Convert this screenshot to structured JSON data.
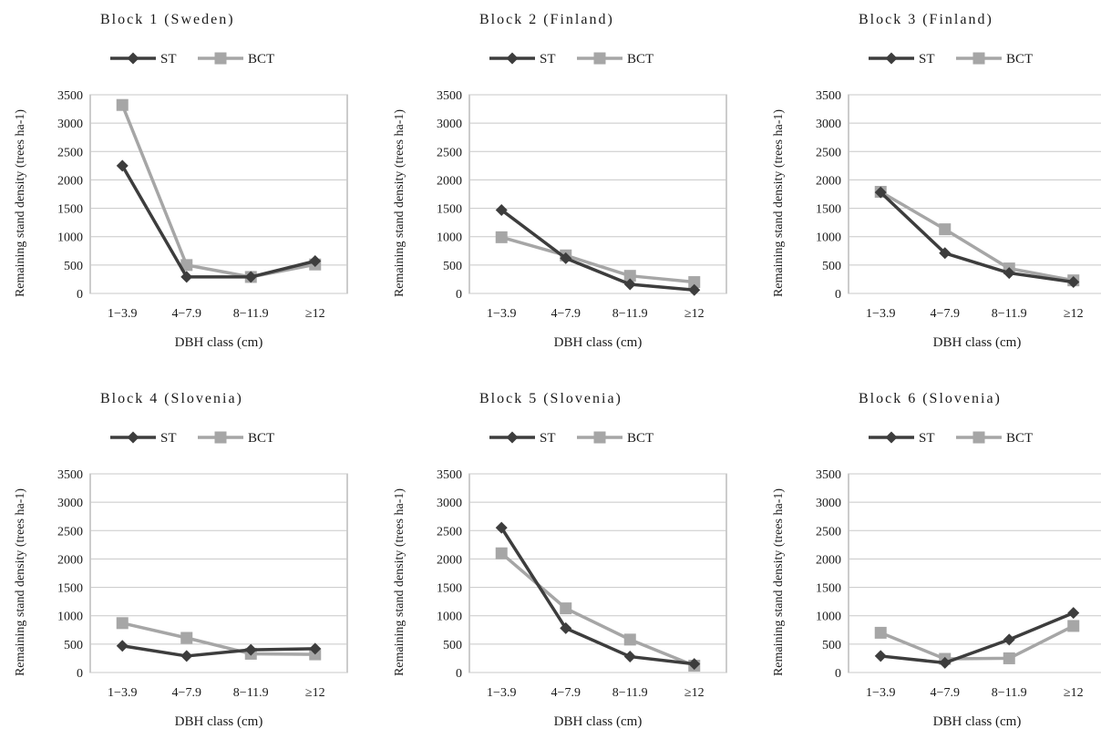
{
  "colors": {
    "ST": "#3d3d3d",
    "BCT": "#a6a6a6",
    "grid": "#c8c8c8",
    "axis": "#999999"
  },
  "chart_data": [
    {
      "type": "line",
      "title": "Block 1 (Sweden)",
      "xlabel": "DBH class (cm)",
      "ylabel": "Remaining stand density (trees ha-1)",
      "categories": [
        "1−3.9",
        "4−7.9",
        "8−11.9",
        "≥12"
      ],
      "ylim": [
        0,
        3500
      ],
      "yticks": [
        0,
        500,
        1000,
        1500,
        2000,
        2500,
        3000,
        3500
      ],
      "grid": true,
      "legend": "top",
      "series": [
        {
          "name": "ST",
          "marker": "diamond",
          "values": [
            2250,
            290,
            290,
            570
          ]
        },
        {
          "name": "BCT",
          "marker": "square",
          "values": [
            3320,
            500,
            290,
            510
          ]
        }
      ]
    },
    {
      "type": "line",
      "title": "Block 2 (Finland)",
      "xlabel": "DBH class (cm)",
      "ylabel": "Remaining stand density (trees ha-1)",
      "categories": [
        "1−3.9",
        "4−7.9",
        "8−11.9",
        "≥12"
      ],
      "ylim": [
        0,
        3500
      ],
      "yticks": [
        0,
        500,
        1000,
        1500,
        2000,
        2500,
        3000,
        3500
      ],
      "grid": true,
      "legend": "top",
      "series": [
        {
          "name": "ST",
          "marker": "diamond",
          "values": [
            1470,
            620,
            160,
            60
          ]
        },
        {
          "name": "BCT",
          "marker": "square",
          "values": [
            990,
            670,
            310,
            200
          ]
        }
      ]
    },
    {
      "type": "line",
      "title": "Block 3 (Finland)",
      "xlabel": "DBH class (cm)",
      "ylabel": "Remaining stand density (trees ha-1)",
      "categories": [
        "1−3.9",
        "4−7.9",
        "8−11.9",
        "≥12"
      ],
      "ylim": [
        0,
        3500
      ],
      "yticks": [
        0,
        500,
        1000,
        1500,
        2000,
        2500,
        3000,
        3500
      ],
      "grid": true,
      "legend": "top",
      "series": [
        {
          "name": "ST",
          "marker": "diamond",
          "values": [
            1780,
            710,
            360,
            200
          ]
        },
        {
          "name": "BCT",
          "marker": "square",
          "values": [
            1790,
            1130,
            440,
            230
          ]
        }
      ]
    },
    {
      "type": "line",
      "title": "Block 4 (Slovenia)",
      "xlabel": "DBH class (cm)",
      "ylabel": "Remaining stand density (trees ha-1)",
      "categories": [
        "1−3.9",
        "4−7.9",
        "8−11.9",
        "≥12"
      ],
      "ylim": [
        0,
        3500
      ],
      "yticks": [
        0,
        500,
        1000,
        1500,
        2000,
        2500,
        3000,
        3500
      ],
      "grid": true,
      "legend": "top",
      "series": [
        {
          "name": "ST",
          "marker": "diamond",
          "values": [
            470,
            290,
            400,
            420
          ]
        },
        {
          "name": "BCT",
          "marker": "square",
          "values": [
            870,
            610,
            330,
            320
          ]
        }
      ]
    },
    {
      "type": "line",
      "title": "Block 5 (Slovenia)",
      "xlabel": "DBH class (cm)",
      "ylabel": "Remaining stand density (trees ha-1)",
      "categories": [
        "1−3.9",
        "4−7.9",
        "8−11.9",
        "≥12"
      ],
      "ylim": [
        0,
        3500
      ],
      "yticks": [
        0,
        500,
        1000,
        1500,
        2000,
        2500,
        3000,
        3500
      ],
      "grid": true,
      "legend": "top",
      "series": [
        {
          "name": "ST",
          "marker": "diamond",
          "values": [
            2550,
            780,
            280,
            150
          ]
        },
        {
          "name": "BCT",
          "marker": "square",
          "values": [
            2100,
            1130,
            580,
            120
          ]
        }
      ]
    },
    {
      "type": "line",
      "title": "Block 6 (Slovenia)",
      "xlabel": "DBH class (cm)",
      "ylabel": "Remaining stand density (trees ha-1)",
      "categories": [
        "1−3.9",
        "4−7.9",
        "8−11.9",
        "≥12"
      ],
      "ylim": [
        0,
        3500
      ],
      "yticks": [
        0,
        500,
        1000,
        1500,
        2000,
        2500,
        3000,
        3500
      ],
      "grid": true,
      "legend": "top",
      "series": [
        {
          "name": "ST",
          "marker": "diamond",
          "values": [
            290,
            170,
            580,
            1050
          ]
        },
        {
          "name": "BCT",
          "marker": "square",
          "values": [
            700,
            240,
            250,
            820
          ]
        }
      ]
    }
  ]
}
